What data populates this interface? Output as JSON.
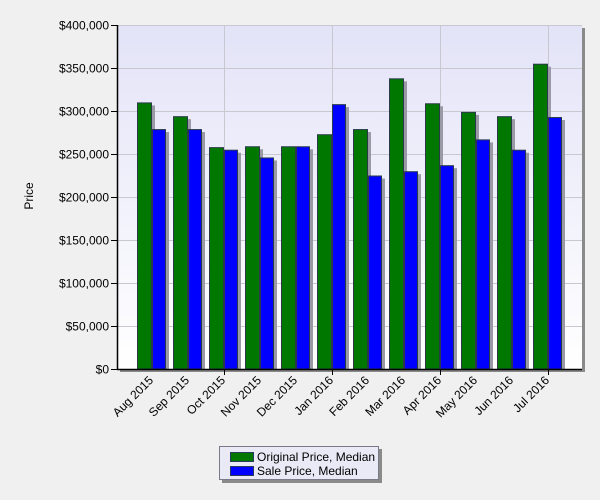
{
  "chart_data": {
    "type": "bar",
    "title": "",
    "xlabel": "",
    "ylabel": "Price",
    "ylim": [
      0,
      400000
    ],
    "yticks": [
      0,
      50000,
      100000,
      150000,
      200000,
      250000,
      300000,
      350000,
      400000
    ],
    "ytick_labels": [
      "$0",
      "$50,000",
      "$100,000",
      "$150,000",
      "$200,000",
      "$250,000",
      "$300,000",
      "$350,000",
      "$400,000"
    ],
    "categories": [
      "Aug 2015",
      "Sep 2015",
      "Oct 2015",
      "Nov 2015",
      "Dec 2015",
      "Jan 2016",
      "Feb 2016",
      "Mar 2016",
      "Apr 2016",
      "May 2016",
      "Jun 2016",
      "Jul 2016"
    ],
    "series": [
      {
        "name": "Original Price, Median",
        "color": "#007800",
        "values": [
          310000,
          294000,
          258000,
          259000,
          259000,
          273000,
          279000,
          338000,
          309000,
          299000,
          294000,
          355000
        ]
      },
      {
        "name": "Sale Price, Median",
        "color": "#0000ff",
        "values": [
          279000,
          279000,
          255000,
          246000,
          259000,
          308000,
          225000,
          230000,
          237000,
          267000,
          255000,
          293000
        ]
      }
    ],
    "grid": true,
    "legend_position": "bottom"
  },
  "legend": {
    "items": [
      {
        "label": "Original Price, Median",
        "color": "#007800"
      },
      {
        "label": "Sale Price, Median",
        "color": "#0000ff"
      }
    ]
  }
}
